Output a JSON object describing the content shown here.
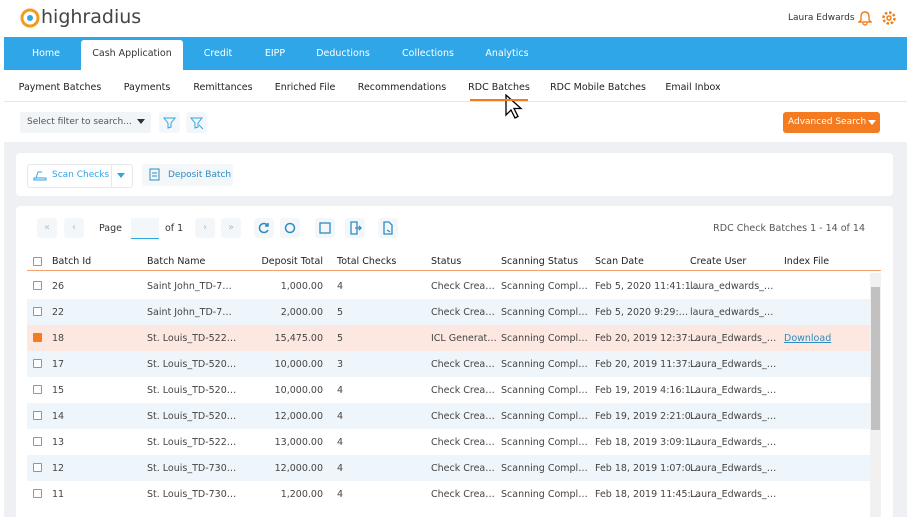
{
  "header": {
    "logo": "highradius",
    "user": "Laura Edwards"
  },
  "nav": {
    "tabs": [
      "Home",
      "Cash Application",
      "Credit",
      "EIPP",
      "Deductions",
      "Collections",
      "Analytics"
    ],
    "active": 1
  },
  "subnav": {
    "tabs": [
      "Payment Batches",
      "Payments",
      "Remittances",
      "Enriched File",
      "Recommendations",
      "RDC Batches",
      "RDC Mobile Batches",
      "Email Inbox"
    ],
    "active": 5
  },
  "filter": {
    "placeholder": "Select filter to search...",
    "advanced": "Advanced Search"
  },
  "actions": {
    "scan": "Scan Checks",
    "deposit": "Deposit Batch"
  },
  "pager": {
    "page": "Page",
    "of": "of 1",
    "summary": "RDC Check Batches 1 - 14 of 14"
  },
  "table": {
    "columns": [
      "Batch Id",
      "Batch Name",
      "Deposit Total",
      "Total Checks",
      "Status",
      "Scanning Status",
      "Scan Date",
      "Create User",
      "Index File"
    ],
    "selected_row": 2,
    "rows": [
      [
        "26",
        "Saint John_TD-7…",
        "1,000.00",
        "4",
        "Check Crea…",
        "Scanning Compl…",
        "Feb 5, 2020 11:41:1…",
        "laura_edwards_…",
        ""
      ],
      [
        "22",
        "Saint John_TD-7…",
        "2,000.00",
        "5",
        "Check Crea…",
        "Scanning Compl…",
        "Feb 5, 2020 9:29:…",
        "laura_edwards_…",
        ""
      ],
      [
        "18",
        "St. Louis_TD-522…",
        "15,475.00",
        "5",
        "ICL Generat…",
        "Scanning Compl…",
        "Feb 20, 2019 12:37:…",
        "Laura_Edwards_…",
        "Download"
      ],
      [
        "17",
        "St. Louis_TD-520…",
        "10,000.00",
        "3",
        "Check Crea…",
        "Scanning Compl…",
        "Feb 20, 2019 11:37:…",
        "Laura_Edwards_…",
        ""
      ],
      [
        "15",
        "St. Louis_TD-520…",
        "10,000.00",
        "4",
        "Check Crea…",
        "Scanning Compl…",
        "Feb 19, 2019 4:16:1…",
        "Laura_Edwards_…",
        ""
      ],
      [
        "14",
        "St. Louis_TD-520…",
        "12,000.00",
        "4",
        "Check Crea…",
        "Scanning Compl…",
        "Feb 19, 2019 2:21:0…",
        "Laura_Edwards_…",
        ""
      ],
      [
        "13",
        "St. Louis_TD-522…",
        "13,000.00",
        "4",
        "Check Crea…",
        "Scanning Compl…",
        "Feb 18, 2019 3:09:1…",
        "Laura_Edwards_…",
        ""
      ],
      [
        "12",
        "St. Louis_TD-730…",
        "12,000.00",
        "4",
        "Check Crea…",
        "Scanning Compl…",
        "Feb 18, 2019 1:07:0…",
        "Laura_Edwards_…",
        ""
      ],
      [
        "11",
        "St. Louis_TD-730…",
        "1,200.00",
        "4",
        "Check Crea…",
        "Scanning Compl…",
        "Feb 18, 2019 11:45:…",
        "Laura_Edwards_…",
        ""
      ]
    ]
  }
}
